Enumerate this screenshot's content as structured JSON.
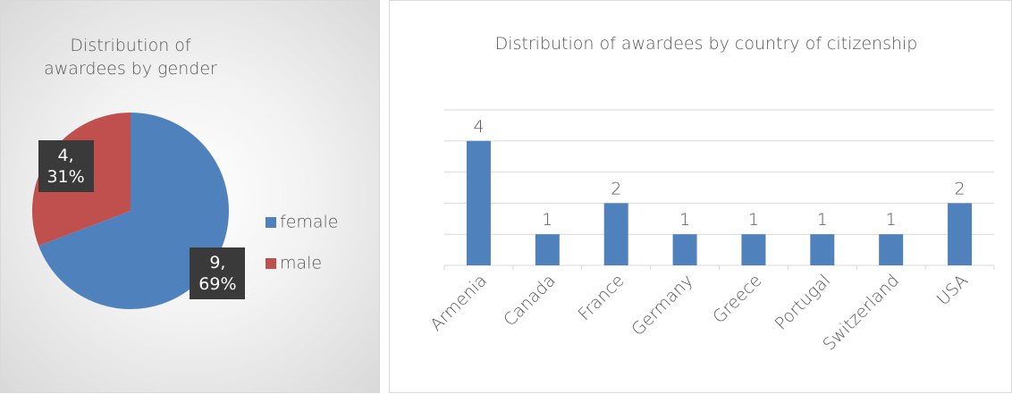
{
  "chart_data": [
    {
      "type": "pie",
      "title": "Distribution of awardees by gender",
      "categories": [
        "female",
        "male"
      ],
      "values": [
        9,
        4
      ],
      "value_labels": [
        "9, 69%",
        "4, 31%"
      ],
      "colors": [
        "#4f81bd",
        "#c0504d"
      ],
      "legend": "right"
    },
    {
      "type": "bar",
      "title": "Distribution of awardees by country of citizenship",
      "categories": [
        "Armenia",
        "Canada",
        "France",
        "Germany",
        "Greece",
        "Portugal",
        "Switzerland",
        "USA"
      ],
      "values": [
        4,
        1,
        2,
        1,
        1,
        1,
        1,
        2
      ],
      "color": "#4f81bd",
      "ylim": [
        0,
        5
      ],
      "yticks": [
        0,
        1,
        2,
        3,
        4,
        5
      ],
      "grid": true
    }
  ]
}
